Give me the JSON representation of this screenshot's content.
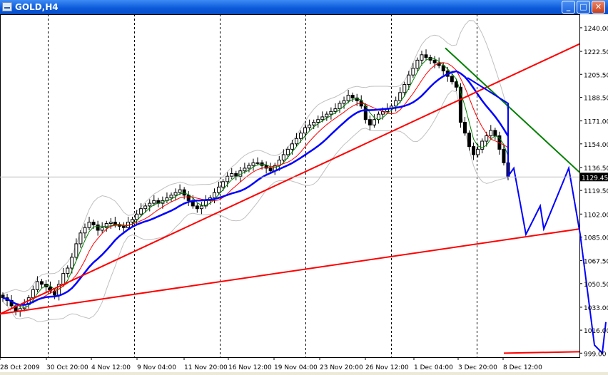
{
  "window": {
    "title": "GOLD,H4",
    "minimize_glyph": "_",
    "maximize_glyph": "□",
    "close_glyph": "✕"
  },
  "chart_data": {
    "type": "candlestick",
    "symbol": "GOLD",
    "timeframe": "H4",
    "current_price_label": "1129.45",
    "current_price": 1129.45,
    "y_ticks": [
      "1240.00",
      "1222.50",
      "1205.50",
      "1188.50",
      "1171.00",
      "1154.00",
      "1136.50",
      "1119.50",
      "1102.00",
      "1085.00",
      "1067.50",
      "1050.50",
      "1033.00",
      "1016.00",
      "999.00"
    ],
    "y_range": [
      996,
      1250
    ],
    "x_ticks": [
      "28 Oct 2009",
      "30 Oct 20:00",
      "4 Nov 12:00",
      "9 Nov 04:00",
      "11 Nov 20:00",
      "16 Nov 12:00",
      "19 Nov 04:00",
      "23 Nov 20:00",
      "26 Nov 12:00",
      "1 Dec 04:00",
      "3 Dec 20:00",
      "8 Dec 12:00"
    ],
    "grid": "vertical dashed lines at day separators",
    "ohlc_close_approx": [
      1040,
      1038,
      1034,
      1030,
      1032,
      1035,
      1040,
      1046,
      1052,
      1050,
      1048,
      1045,
      1042,
      1050,
      1058,
      1062,
      1070,
      1080,
      1088,
      1092,
      1096,
      1094,
      1090,
      1092,
      1095,
      1096,
      1094,
      1093,
      1092,
      1096,
      1098,
      1102,
      1106,
      1108,
      1110,
      1112,
      1110,
      1112,
      1114,
      1116,
      1118,
      1120,
      1116,
      1112,
      1108,
      1106,
      1108,
      1112,
      1114,
      1118,
      1122,
      1126,
      1130,
      1132,
      1130,
      1134,
      1136,
      1138,
      1140,
      1140,
      1138,
      1136,
      1134,
      1138,
      1142,
      1146,
      1150,
      1154,
      1158,
      1162,
      1166,
      1168,
      1170,
      1172,
      1174,
      1176,
      1178,
      1180,
      1184,
      1186,
      1190,
      1188,
      1186,
      1182,
      1172,
      1168,
      1172,
      1176,
      1178,
      1180,
      1182,
      1186,
      1192,
      1198,
      1205,
      1210,
      1216,
      1220,
      1218,
      1216,
      1214,
      1212,
      1208,
      1204,
      1200,
      1196,
      1170,
      1162,
      1152,
      1146,
      1150,
      1156,
      1160,
      1164,
      1160,
      1150,
      1140,
      1130
    ],
    "series": [
      {
        "name": "MA fast",
        "color": "#008000"
      },
      {
        "name": "MA medium",
        "color": "#ff0000"
      },
      {
        "name": "MA slow",
        "color": "#0000ff"
      },
      {
        "name": "Bollinger Bands",
        "color": "#c0c0c0"
      }
    ],
    "drawn_trendlines": [
      {
        "color": "#ff0000",
        "from": [
          "28 Oct 2009",
          1028
        ],
        "to": [
          "right edge",
          1228
        ]
      },
      {
        "color": "#ff0000",
        "from": [
          "28 Oct 2009",
          1028
        ],
        "to": [
          "right edge",
          1091
        ]
      },
      {
        "color": "#ff0000",
        "from": [
          "8 Dec 12:00",
          999
        ],
        "to": [
          "right edge",
          1000
        ]
      },
      {
        "color": "#008000",
        "from": [
          "1 Dec 04:00",
          1225
        ],
        "to": [
          "right edge",
          1133
        ]
      },
      {
        "color": "#0000ff",
        "label": "projected path",
        "points": [
          [
            "3 Dec 20:00",
            1203
          ],
          [
            "8 Dec 12:00",
            1184
          ],
          [
            "8 Dec 12:00",
            1130
          ],
          [
            "",
            1136
          ],
          [
            "",
            1087
          ],
          [
            "",
            1108
          ],
          [
            "",
            1091
          ],
          [
            "",
            1136
          ],
          [
            "",
            1087
          ],
          [
            "",
            1005
          ],
          [
            "",
            999
          ],
          [
            "",
            1022
          ]
        ]
      }
    ]
  }
}
